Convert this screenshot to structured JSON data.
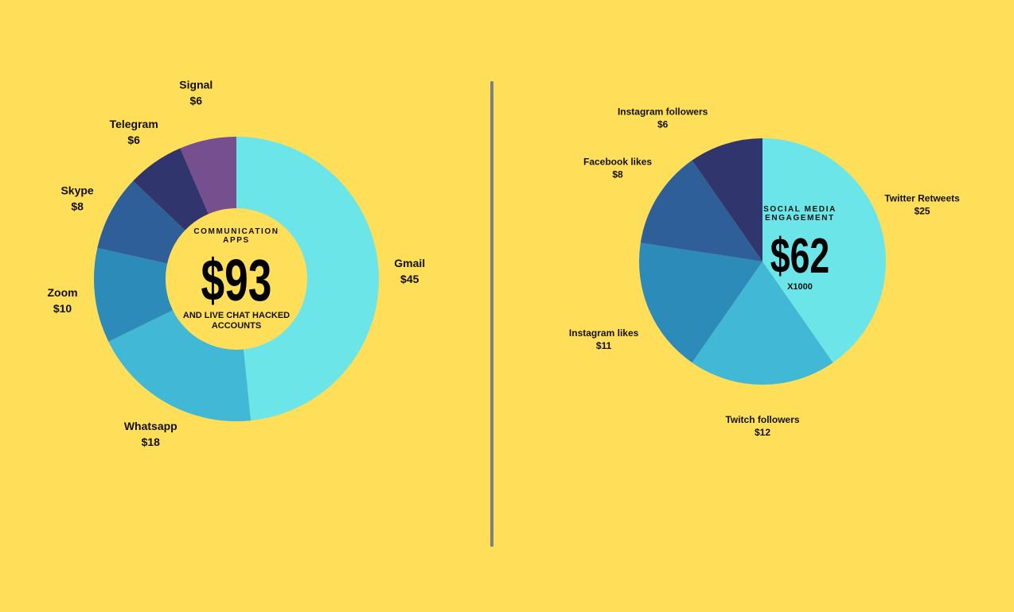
{
  "chart_data": [
    {
      "type": "pie",
      "variant": "donut",
      "center": {
        "top": "COMMUNICATION\nAPPS",
        "value": "$93",
        "bottom": "AND LIVE CHAT HACKED\nACCOUNTS"
      },
      "categories": [
        "Gmail",
        "Whatsapp",
        "Zoom",
        "Skype",
        "Telegram",
        "Signal"
      ],
      "values": [
        45,
        18,
        10,
        8,
        6,
        6
      ],
      "value_labels": [
        "$45",
        "$18",
        "$10",
        "$8",
        "$6",
        "$6"
      ],
      "colors": [
        "#6CE5E8",
        "#41B8D5",
        "#2D8BBA",
        "#2F5F98",
        "#31356E",
        "#754F8E"
      ]
    },
    {
      "type": "pie",
      "center": {
        "top": "SOCIAL MEDIA\nENGAGEMENT",
        "value": "$62",
        "bottom": "X1000"
      },
      "categories": [
        "Twitter Retweets",
        "Twitch followers",
        "Instagram likes",
        "Facebook likes",
        "Instagram followers"
      ],
      "values": [
        25,
        12,
        11,
        8,
        6
      ],
      "value_labels": [
        "$25",
        "$12",
        "$11",
        "$8",
        "$6"
      ],
      "colors": [
        "#6CE5E8",
        "#41B8D5",
        "#2D8BBA",
        "#2F5F98",
        "#31356E"
      ]
    }
  ],
  "colors": {
    "background": "#FFDE59",
    "divider": "#808080"
  }
}
